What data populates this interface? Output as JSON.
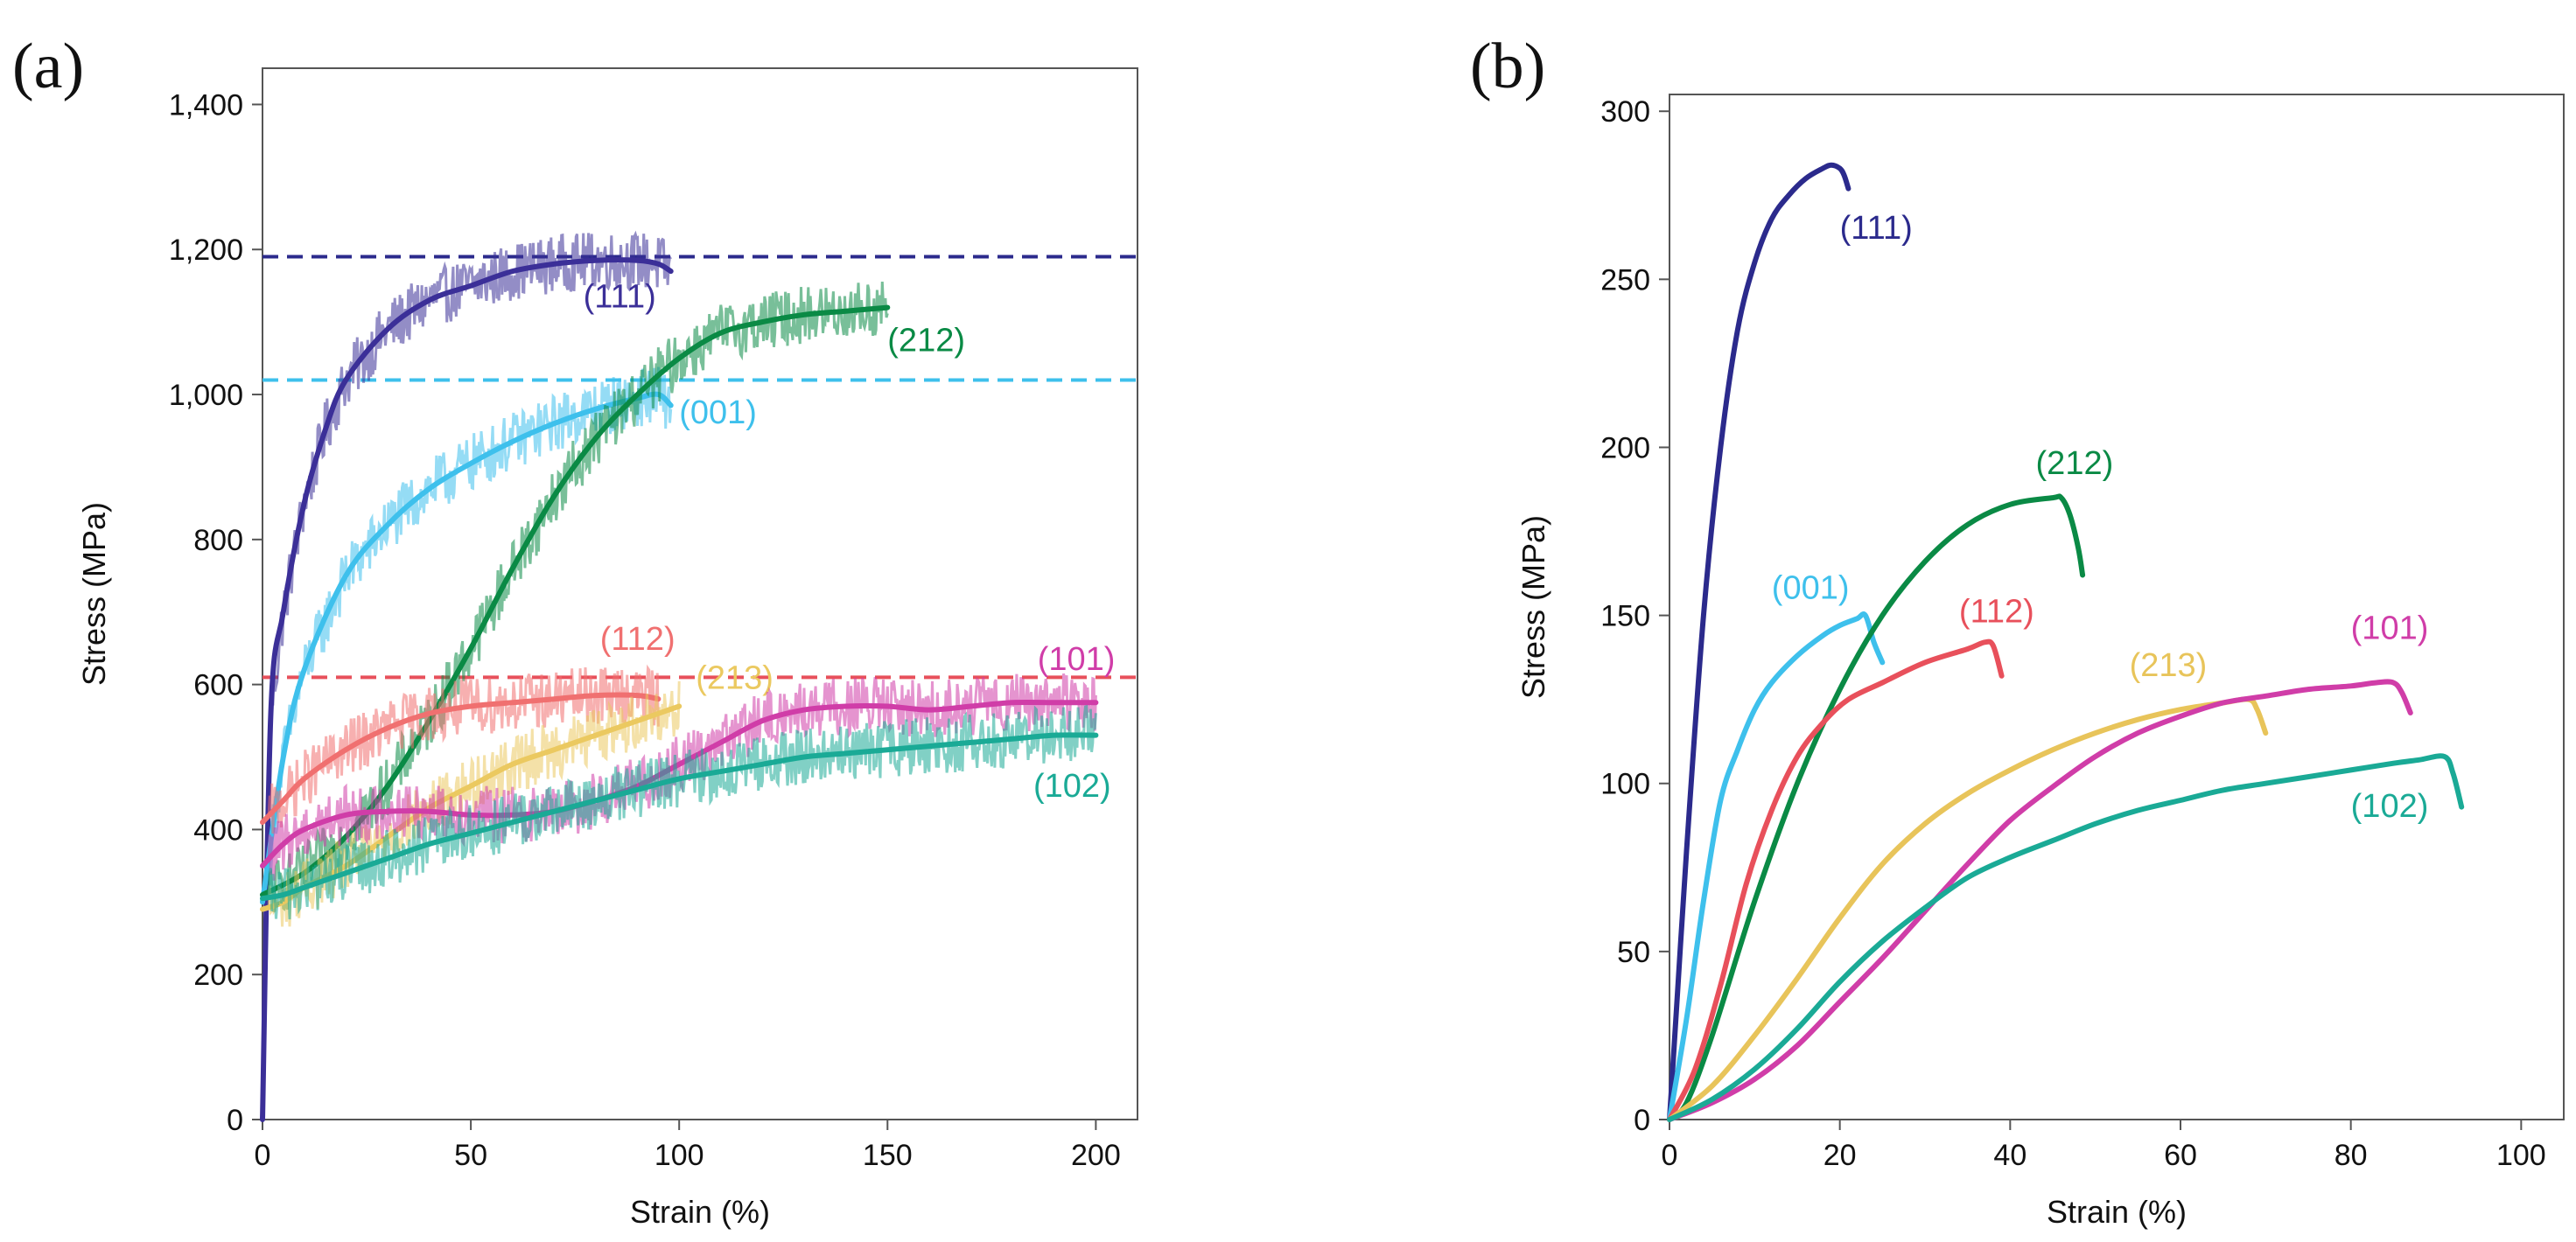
{
  "chart_data": [
    {
      "panel": "(a)",
      "type": "line",
      "xlabel": "Strain (%)",
      "ylabel": "Stress (MPa)",
      "xlim": [
        0,
        210
      ],
      "ylim": [
        0,
        1450
      ],
      "xticks": [
        0,
        50,
        100,
        150,
        200
      ],
      "xtick_labels": [
        "0",
        "50",
        "100",
        "150",
        "200"
      ],
      "yticks": [
        0,
        200,
        400,
        600,
        800,
        1000,
        1200,
        1400
      ],
      "ytick_labels": [
        "0",
        "200",
        "400",
        "600",
        "800",
        "1,000",
        "1,200",
        "1,400"
      ],
      "grid": false,
      "reference_lines": [
        {
          "y": 1190,
          "color": "#2b2a8c",
          "style": "dashed"
        },
        {
          "y": 1020,
          "color": "#3ec0ec",
          "style": "dashed"
        },
        {
          "y": 610,
          "color": "#e8505b",
          "style": "dashed"
        }
      ],
      "series": [
        {
          "name": "(111)",
          "color": "#3b2f98",
          "noisy": true,
          "x": [
            0,
            2,
            5,
            10,
            15,
            20,
            30,
            40,
            50,
            60,
            70,
            80,
            90,
            95,
            98
          ],
          "y": [
            0,
            560,
            700,
            850,
            950,
            1020,
            1090,
            1130,
            1150,
            1170,
            1180,
            1185,
            1185,
            1180,
            1170
          ],
          "label_pos": [
            77,
            1120
          ]
        },
        {
          "name": "(001)",
          "color": "#3ec0ec",
          "noisy": true,
          "x": [
            0,
            5,
            10,
            20,
            30,
            40,
            50,
            60,
            70,
            80,
            90,
            95,
            98
          ],
          "y": [
            300,
            500,
            620,
            750,
            820,
            870,
            905,
            935,
            960,
            980,
            995,
            1000,
            985
          ],
          "label_pos": [
            100,
            960
          ]
        },
        {
          "name": "(212)",
          "color": "#0a8a45",
          "noisy": true,
          "x": [
            0,
            10,
            20,
            30,
            40,
            50,
            60,
            70,
            80,
            90,
            100,
            110,
            120,
            130,
            140,
            150
          ],
          "y": [
            310,
            340,
            390,
            460,
            550,
            650,
            760,
            860,
            940,
            1000,
            1050,
            1085,
            1100,
            1110,
            1115,
            1120
          ],
          "label_pos": [
            150,
            1060
          ]
        },
        {
          "name": "(112)",
          "color": "#f07070",
          "noisy": true,
          "x": [
            0,
            5,
            10,
            20,
            30,
            40,
            50,
            60,
            70,
            80,
            90,
            95
          ],
          "y": [
            410,
            440,
            470,
            510,
            540,
            560,
            570,
            575,
            580,
            585,
            585,
            580
          ],
          "label_pos": [
            81,
            648
          ]
        },
        {
          "name": "(213)",
          "color": "#ebc960",
          "noisy": true,
          "x": [
            0,
            5,
            10,
            20,
            30,
            40,
            50,
            60,
            70,
            80,
            90,
            95,
            100
          ],
          "y": [
            290,
            300,
            320,
            350,
            390,
            430,
            460,
            490,
            510,
            530,
            550,
            560,
            570
          ],
          "label_pos": [
            104,
            594
          ]
        },
        {
          "name": "(101)",
          "color": "#d03da8",
          "noisy": true,
          "x": [
            0,
            5,
            10,
            20,
            30,
            40,
            50,
            60,
            70,
            80,
            90,
            100,
            110,
            120,
            130,
            140,
            150,
            160,
            170,
            180,
            190,
            200
          ],
          "y": [
            350,
            380,
            400,
            420,
            425,
            425,
            420,
            420,
            425,
            440,
            460,
            490,
            520,
            550,
            565,
            570,
            570,
            565,
            570,
            575,
            575,
            575
          ],
          "label_pos": [
            186,
            620
          ]
        },
        {
          "name": "(102)",
          "color": "#1aaa96",
          "noisy": true,
          "x": [
            0,
            5,
            10,
            20,
            30,
            40,
            50,
            60,
            70,
            80,
            90,
            100,
            110,
            120,
            130,
            140,
            150,
            160,
            170,
            180,
            190,
            200
          ],
          "y": [
            305,
            310,
            320,
            340,
            360,
            380,
            395,
            410,
            425,
            440,
            455,
            470,
            480,
            490,
            500,
            505,
            510,
            515,
            520,
            525,
            530,
            530
          ],
          "label_pos": [
            185,
            445
          ]
        }
      ]
    },
    {
      "panel": "(b)",
      "type": "line",
      "xlabel": "Strain (%)",
      "ylabel": "Stress (MPa)",
      "xlim": [
        0,
        105
      ],
      "ylim": [
        0,
        305
      ],
      "xticks": [
        0,
        20,
        40,
        60,
        80,
        100
      ],
      "xtick_labels": [
        "0",
        "20",
        "40",
        "60",
        "80",
        "100"
      ],
      "yticks": [
        0,
        50,
        100,
        150,
        200,
        250,
        300
      ],
      "ytick_labels": [
        "0",
        "50",
        "100",
        "150",
        "200",
        "250",
        "300"
      ],
      "grid": false,
      "series": [
        {
          "name": "(111)",
          "color": "#2b2a8c",
          "noisy": false,
          "x": [
            0,
            1,
            2,
            4,
            6,
            8,
            10,
            12,
            14,
            16,
            18,
            19,
            20,
            20.5,
            21
          ],
          "y": [
            0,
            40,
            80,
            150,
            200,
            235,
            255,
            268,
            275,
            280,
            283,
            284,
            283,
            281,
            277
          ],
          "label_pos": [
            20,
            262
          ]
        },
        {
          "name": "(001)",
          "color": "#3ec0ec",
          "noisy": false,
          "x": [
            0,
            2,
            4,
            6,
            8,
            10,
            12,
            15,
            18,
            20,
            22,
            23,
            24,
            25
          ],
          "y": [
            0,
            30,
            65,
            95,
            110,
            122,
            130,
            138,
            144,
            147,
            149,
            150,
            142,
            136
          ],
          "label_pos": [
            12,
            155
          ]
        },
        {
          "name": "(212)",
          "color": "#0a8a45",
          "noisy": false,
          "x": [
            0,
            2,
            5,
            10,
            15,
            20,
            25,
            30,
            35,
            40,
            45,
            46,
            47,
            48,
            48.5
          ],
          "y": [
            0,
            5,
            25,
            65,
            100,
            128,
            150,
            166,
            177,
            183,
            185,
            185,
            180,
            170,
            162
          ],
          "label_pos": [
            43,
            192
          ]
        },
        {
          "name": "(112)",
          "color": "#e8505b",
          "noisy": false,
          "x": [
            0,
            3,
            6,
            9,
            12,
            15,
            18,
            21,
            25,
            30,
            35,
            37,
            38,
            39
          ],
          "y": [
            0,
            15,
            40,
            70,
            92,
            108,
            118,
            125,
            130,
            136,
            140,
            142,
            141,
            132
          ],
          "label_pos": [
            34,
            148
          ]
        },
        {
          "name": "(213)",
          "color": "#e8c45a",
          "noisy": false,
          "x": [
            0,
            5,
            10,
            15,
            20,
            25,
            30,
            35,
            40,
            45,
            50,
            55,
            60,
            65,
            68,
            69,
            70
          ],
          "y": [
            0,
            10,
            25,
            42,
            60,
            76,
            88,
            97,
            104,
            110,
            115,
            119,
            122,
            124,
            125,
            122,
            115
          ],
          "label_pos": [
            54,
            132
          ]
        },
        {
          "name": "(101)",
          "color": "#d03da8",
          "noisy": false,
          "x": [
            0,
            5,
            10,
            15,
            20,
            25,
            30,
            35,
            40,
            45,
            50,
            55,
            60,
            65,
            70,
            75,
            80,
            83,
            85,
            86,
            87
          ],
          "y": [
            0,
            5,
            12,
            22,
            35,
            48,
            62,
            76,
            89,
            99,
            108,
            115,
            120,
            124,
            126,
            128,
            129,
            130,
            130,
            127,
            121
          ],
          "label_pos": [
            80,
            143
          ]
        },
        {
          "name": "(102)",
          "color": "#1aaa96",
          "noisy": false,
          "x": [
            0,
            5,
            10,
            15,
            20,
            25,
            30,
            35,
            40,
            45,
            50,
            55,
            60,
            65,
            70,
            75,
            80,
            85,
            88,
            91,
            92,
            93
          ],
          "y": [
            0,
            6,
            15,
            27,
            41,
            53,
            63,
            72,
            78,
            83,
            88,
            92,
            95,
            98,
            100,
            102,
            104,
            106,
            107,
            108,
            103,
            93
          ],
          "label_pos": [
            80,
            90
          ]
        }
      ]
    }
  ]
}
